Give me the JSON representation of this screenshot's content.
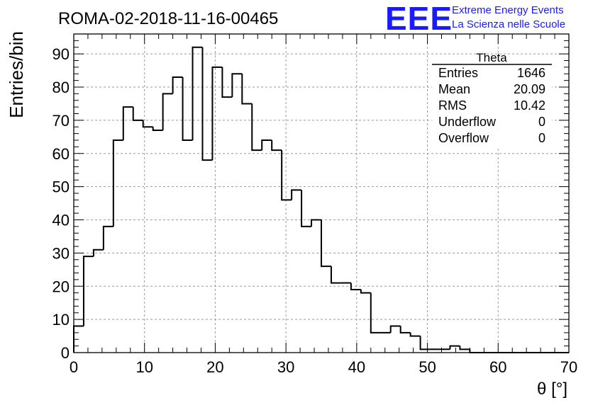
{
  "header": {
    "run_title": "ROMA-02-2018-11-16-00465",
    "logo_text": "EEE",
    "logo_line1": "Extreme Energy Events",
    "logo_line2": "La Scienza nelle Scuole"
  },
  "stats_box": {
    "title": "Theta",
    "rows": [
      {
        "label": "Entries",
        "value": "1646"
      },
      {
        "label": "Mean",
        "value": "20.09"
      },
      {
        "label": "RMS",
        "value": "10.42"
      },
      {
        "label": "Underflow",
        "value": "0"
      },
      {
        "label": "Overflow",
        "value": "0"
      }
    ]
  },
  "colors": {
    "logo_blue": "#1a1aff",
    "histogram_line": "#000000",
    "grid": "#9a9a9a"
  },
  "chart_data": {
    "type": "histogram",
    "xlabel": "θ [°]",
    "ylabel": "Entries/bin",
    "xlim": [
      0,
      70
    ],
    "ylim": [
      0,
      96
    ],
    "bin_width": 1.4,
    "x_ticks": [
      0,
      10,
      20,
      30,
      40,
      50,
      60,
      70
    ],
    "y_ticks": [
      0,
      10,
      20,
      30,
      40,
      50,
      60,
      70,
      80,
      90
    ],
    "grid": true,
    "values": [
      8,
      29,
      31,
      38,
      64,
      74,
      70,
      68,
      67,
      78,
      83,
      64,
      92,
      58,
      86,
      77,
      84,
      75,
      61,
      64,
      61,
      46,
      49,
      38,
      40,
      26,
      21,
      21,
      19,
      18,
      6,
      6,
      8,
      6,
      5,
      1,
      1,
      1,
      2,
      1,
      0,
      0,
      0,
      0,
      0,
      0,
      0,
      0,
      0,
      0
    ]
  }
}
